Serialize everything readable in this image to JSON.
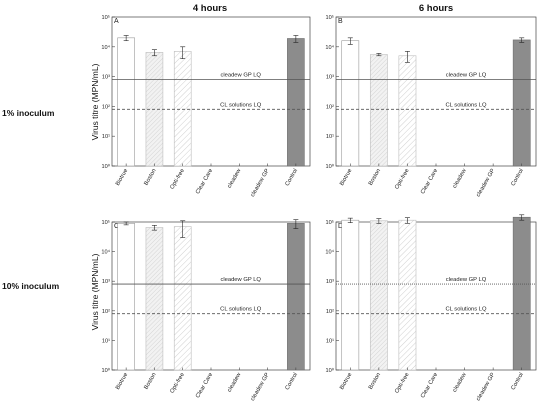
{
  "figure": {
    "col_headers": [
      "4 hours",
      "6 hours"
    ],
    "row_labels": [
      "1% inoculum",
      "10% inoculum"
    ],
    "ylabel": "Virus titre (MPN/mL)"
  },
  "chart_data": [
    {
      "type": "bar",
      "panel": "A",
      "time": "4 hours",
      "inoculum": "1% inoculum",
      "categories": [
        "Biotrue",
        "Boston",
        "Opti-free",
        "Clear Care",
        "cleadew",
        "cleadew GP",
        "Control"
      ],
      "values": [
        20000,
        6500,
        7000,
        null,
        null,
        null,
        19000
      ],
      "errors": [
        4000,
        1500,
        3000,
        null,
        null,
        null,
        5000
      ],
      "yscale": "log",
      "ylim": [
        1,
        100000
      ],
      "yticks": [
        1,
        10,
        100,
        1000,
        10000,
        100000
      ],
      "ytick_labels": [
        "10⁰",
        "10¹",
        "10²",
        "10³",
        "10⁴",
        "10⁵"
      ],
      "reference_lines": [
        {
          "label": "cleadew GP LQ",
          "value": 800,
          "style": "solid"
        },
        {
          "label": "CL solutions LQ",
          "value": 80,
          "style": "dashed"
        }
      ]
    },
    {
      "type": "bar",
      "panel": "B",
      "time": "6 hours",
      "inoculum": "1% inoculum",
      "categories": [
        "Biotrue",
        "Boston",
        "Opti-free",
        "Clear Care",
        "cleadew",
        "cleadew GP",
        "Control"
      ],
      "values": [
        16000,
        5500,
        5000,
        null,
        null,
        null,
        17000
      ],
      "errors": [
        4000,
        500,
        2000,
        null,
        null,
        null,
        3000
      ],
      "yscale": "log",
      "ylim": [
        1,
        100000
      ],
      "yticks": [
        1,
        10,
        100,
        1000,
        10000,
        100000
      ],
      "ytick_labels": [
        "10⁰",
        "10¹",
        "10²",
        "10³",
        "10⁴",
        "10⁵"
      ],
      "reference_lines": [
        {
          "label": "cleadew GP LQ",
          "value": 800,
          "style": "solid"
        },
        {
          "label": "CL solutions LQ",
          "value": 80,
          "style": "dashed"
        }
      ]
    },
    {
      "type": "bar",
      "panel": "C",
      "time": "4 hours",
      "inoculum": "10% inoculum",
      "categories": [
        "Biotrue",
        "Boston",
        "Opti-free",
        "Clear Care",
        "cleadew",
        "cleadew GP",
        "Control"
      ],
      "values": [
        90000,
        65000,
        70000,
        null,
        null,
        null,
        90000
      ],
      "errors": [
        10000,
        12000,
        40000,
        null,
        null,
        null,
        30000
      ],
      "yscale": "log",
      "ylim": [
        1,
        100000
      ],
      "yticks": [
        1,
        10,
        100,
        1000,
        10000,
        100000
      ],
      "ytick_labels": [
        "10⁰",
        "10¹",
        "10²",
        "10³",
        "10⁴",
        "10⁵"
      ],
      "reference_lines": [
        {
          "label": "cleadew GP LQ",
          "value": 800,
          "style": "solid"
        },
        {
          "label": "CL solutions LQ",
          "value": 80,
          "style": "dashed"
        }
      ]
    },
    {
      "type": "bar",
      "panel": "D",
      "time": "6 hours",
      "inoculum": "10% inoculum",
      "categories": [
        "Biotrue",
        "Boston",
        "Opti-free",
        "Clear Care",
        "cleadew",
        "cleadew GP",
        "Control"
      ],
      "values": [
        115000,
        110000,
        115000,
        null,
        null,
        null,
        145000
      ],
      "errors": [
        20000,
        20000,
        25000,
        null,
        null,
        null,
        30000
      ],
      "yscale": "log",
      "ylim": [
        1,
        100000
      ],
      "yticks": [
        1,
        10,
        100,
        1000,
        10000,
        100000
      ],
      "ytick_labels": [
        "10⁰",
        "10¹",
        "10²",
        "10³",
        "10⁴",
        "10⁵"
      ],
      "reference_lines": [
        {
          "label": "cleadew GP LQ",
          "value": 800,
          "style": "dotted"
        },
        {
          "label": "CL solutions LQ",
          "value": 80,
          "style": "dashed"
        }
      ]
    }
  ]
}
